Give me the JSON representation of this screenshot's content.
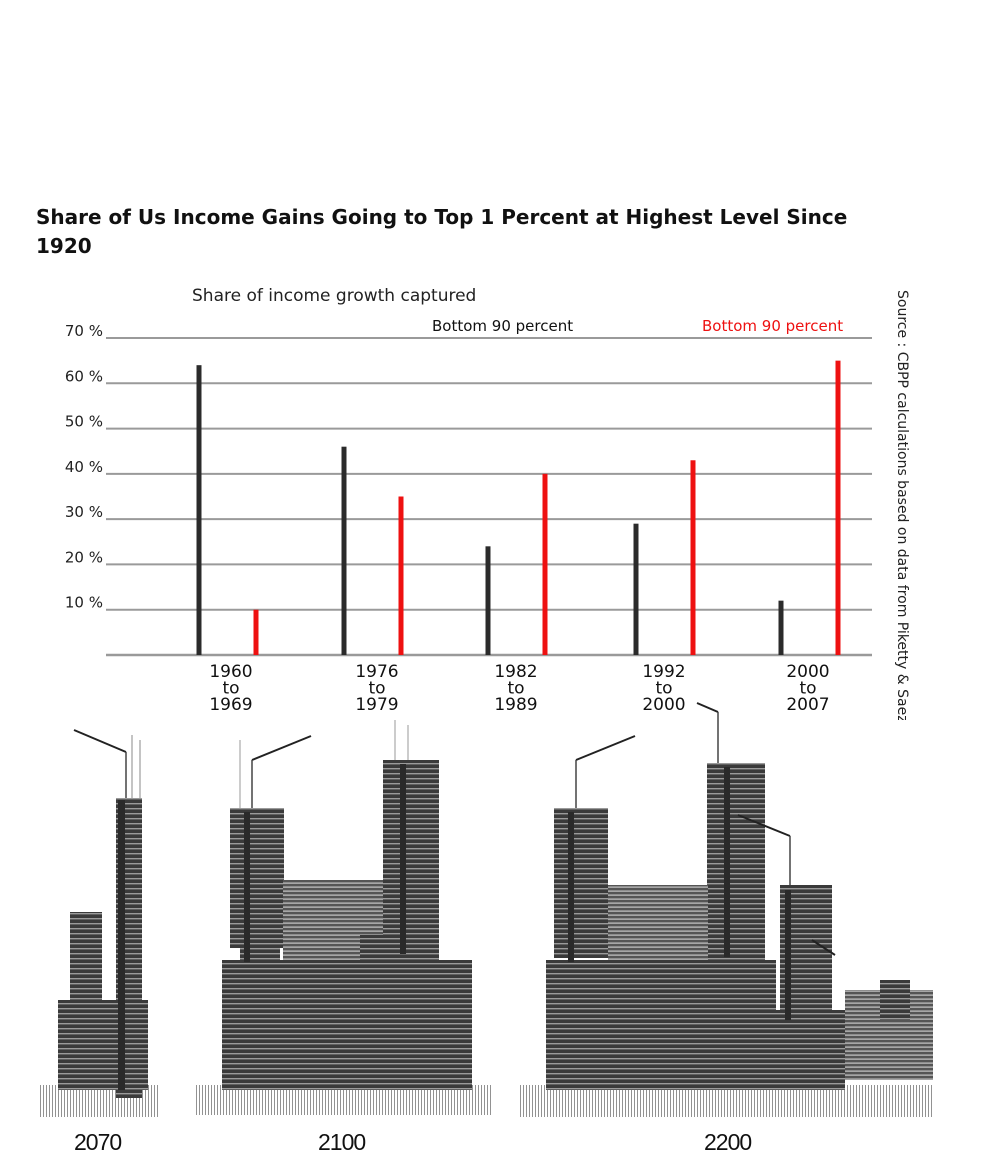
{
  "title": "Share of Us Income Gains Going to Top 1 Percent at Highest Level Since 1920",
  "chart_data": {
    "type": "bar",
    "title": "Share of Us Income Gains Going to Top 1 Percent at Highest Level Since 1920",
    "subtitle": "Share of income growth captured",
    "categories": [
      [
        "1960",
        "to",
        "1969"
      ],
      [
        "1976",
        "to",
        "1979"
      ],
      [
        "1982",
        "to",
        "1989"
      ],
      [
        "1992",
        "to",
        "2000"
      ],
      [
        "2000",
        "to",
        "2007"
      ]
    ],
    "series": [
      {
        "name": "Bottom 90 percent",
        "color": "#2b2b2b",
        "values": [
          64,
          46,
          24,
          29,
          12
        ]
      },
      {
        "name": "Bottom 90 percent",
        "color": "#ee1111",
        "values": [
          10,
          35,
          40,
          43,
          65
        ]
      }
    ],
    "yticks": [
      10,
      20,
      30,
      40,
      50,
      60,
      70
    ],
    "ytick_suffix": " %",
    "ylim": [
      0,
      70
    ],
    "grid": true,
    "legend_position": "top-right",
    "source": "Source : CBPP calculations based on data from Piketty & Saez"
  },
  "illustration": {
    "labels": [
      "2070",
      "2100",
      "2200"
    ]
  }
}
